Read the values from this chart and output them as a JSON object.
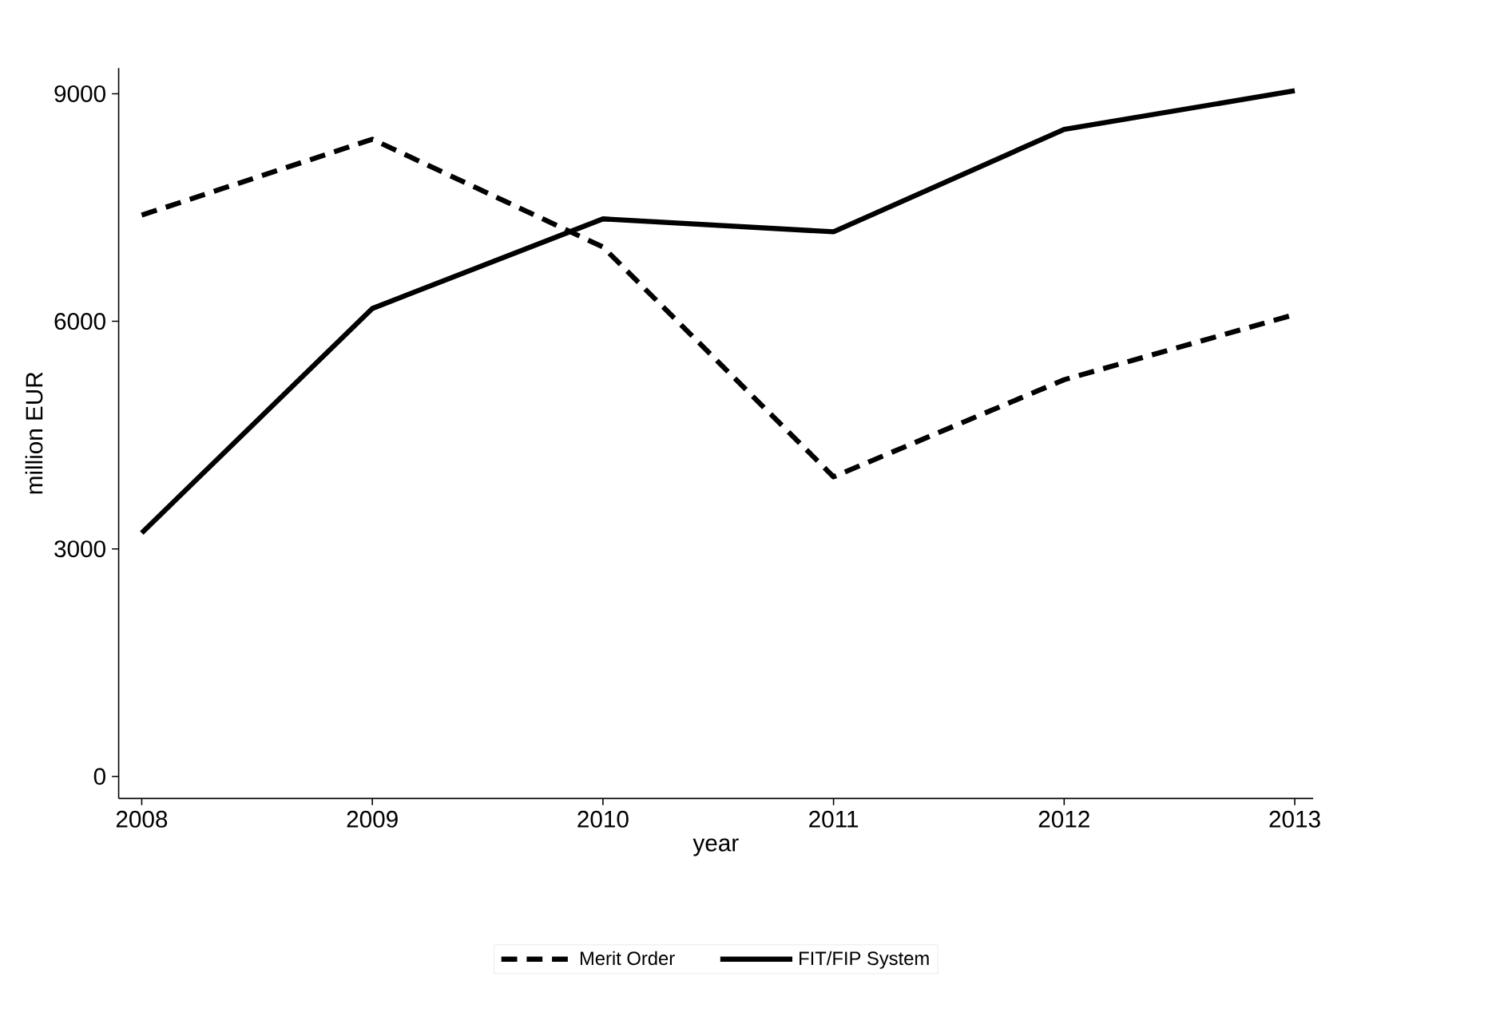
{
  "chart_data": {
    "type": "line",
    "xlabel": "year",
    "ylabel": "million EUR",
    "x": [
      2008,
      2009,
      2010,
      2011,
      2012,
      2013
    ],
    "xlim": [
      2007.9,
      2013.08
    ],
    "ylim": [
      -290,
      9340
    ],
    "xticks": [
      2008,
      2009,
      2010,
      2011,
      2012,
      2013
    ],
    "yticks": [
      0,
      3000,
      6000,
      9000
    ],
    "grid": false,
    "legend": "bottom",
    "marker": "none",
    "series": [
      {
        "name": "Merit Order",
        "color": "#000000",
        "line_style": "dashed",
        "values": [
          7400,
          8400,
          6980,
          3950,
          5230,
          6090
        ]
      },
      {
        "name": "FIT/FIP System",
        "color": "#000000",
        "line_style": "solid",
        "values": [
          3210,
          6170,
          7350,
          7180,
          8530,
          9040
        ]
      }
    ]
  }
}
